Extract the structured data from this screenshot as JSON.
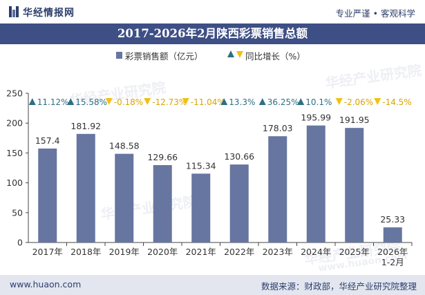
{
  "header": {
    "brand": "华经情报网",
    "slogan": "专业严谨 • 客观科学"
  },
  "title": "2017-2026年2月陕西彩票销售总额",
  "legend": {
    "bar_label": "彩票销售额（亿元）",
    "rate_label": "同比增长（%）"
  },
  "watermark": {
    "text": "华经产业研究院",
    "url": "www.huaon.com"
  },
  "footer": {
    "left": "www.huaon.com",
    "right": "数据来源：财政部，华经产业研究院整理"
  },
  "colors": {
    "bar": "#6676a0",
    "title_bg": "#3e4f85",
    "up": "#2f6f84",
    "down": "#f2c012",
    "footer_bg": "#e3e6ef"
  },
  "chart_data": {
    "type": "bar",
    "categories": [
      "2017年",
      "2018年",
      "2019年",
      "2020年",
      "2021年",
      "2022年",
      "2023年",
      "2024年",
      "2025年",
      "2026年\n1-2月"
    ],
    "series": [
      {
        "name": "彩票销售额（亿元）",
        "values": [
          157.4,
          181.92,
          148.58,
          129.66,
          115.34,
          130.66,
          178.03,
          195.99,
          191.95,
          25.33
        ]
      },
      {
        "name": "同比增长（%）",
        "values": [
          11.12,
          15.58,
          -0.18,
          -12.73,
          -11.04,
          13.3,
          36.25,
          10.1,
          -2.06,
          -14.5
        ],
        "labels": [
          "11.12%",
          "15.58%",
          "-0.18%",
          "-12.73%",
          "-11.04%",
          "13.3%",
          "36.25%",
          "10.1%",
          "-2.06%",
          "-14.5%"
        ]
      }
    ],
    "ylim": [
      0,
      250
    ],
    "yticks": [
      0,
      50,
      100,
      150,
      200,
      250
    ],
    "grid": false,
    "legend_position": "top-center"
  }
}
